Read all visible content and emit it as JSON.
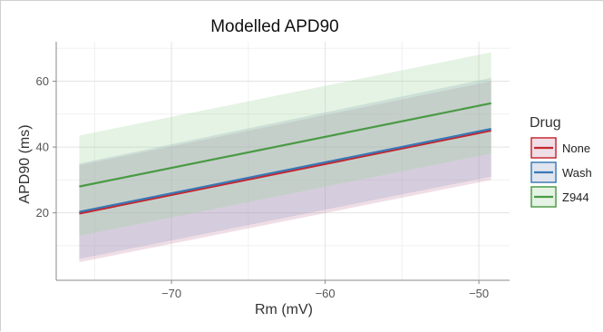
{
  "chart_data": {
    "type": "line",
    "title": "Modelled APD90",
    "xlabel": "Rm (mV)",
    "ylabel": "APD90 (ms)",
    "xlim": [
      -77.5,
      -48.0
    ],
    "ylim": [
      -0.5,
      72.0
    ],
    "x_ticks": [
      -70,
      -60,
      -50
    ],
    "x_tick_labels": [
      "−70",
      "−60",
      "−50"
    ],
    "y_ticks": [
      20,
      40,
      60
    ],
    "y_tick_labels": [
      "20",
      "40",
      "60"
    ],
    "grid": true,
    "legend_title": "Drug",
    "legend_position": "right",
    "series": [
      {
        "name": "None",
        "color": "#c4262e",
        "fill": "#c98aa4",
        "x": [
          -76.0,
          -49.2
        ],
        "y": [
          19.8,
          45.0
        ],
        "lower": [
          5.0,
          30.0
        ],
        "upper": [
          34.5,
          60.0
        ]
      },
      {
        "name": "Wash",
        "color": "#3a78b5",
        "fill": "#8fa3c4",
        "x": [
          -76.0,
          -49.2
        ],
        "y": [
          20.3,
          45.5
        ],
        "lower": [
          6.0,
          31.0
        ],
        "upper": [
          35.0,
          61.0
        ]
      },
      {
        "name": "Z944",
        "color": "#4a9a45",
        "fill": "#9fd39a",
        "x": [
          -76.0,
          -49.2
        ],
        "y": [
          28.0,
          53.3
        ],
        "lower": [
          13.0,
          38.0
        ],
        "upper": [
          43.5,
          68.8
        ]
      }
    ]
  }
}
